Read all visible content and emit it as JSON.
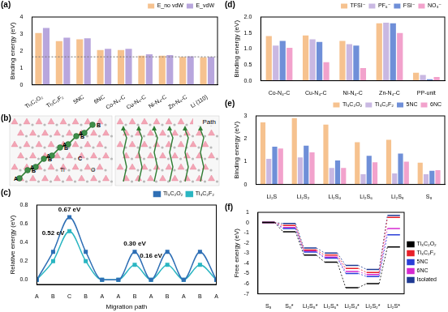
{
  "chart_data": [
    {
      "panel": "(a)",
      "type": "bar",
      "categories": [
        "Ti₃C₂O₂",
        "Ti₃C₂F₂",
        "5NC",
        "6NC",
        "Co-N₄-C",
        "Cu-N₄-C",
        "Ni-N₄-C",
        "Zn-N₄-C",
        "Li (110)"
      ],
      "series": [
        {
          "name": "E_no vdW",
          "color": "#f6c28f",
          "values": [
            3.05,
            2.58,
            2.68,
            2.05,
            2.05,
            1.72,
            1.72,
            1.65,
            1.62
          ]
        },
        {
          "name": "E_vdW",
          "color": "#b8a6dd",
          "values": [
            3.35,
            2.78,
            2.75,
            2.12,
            2.12,
            1.8,
            1.75,
            1.68,
            1.65
          ]
        }
      ],
      "y_label": "Binding energy (eV)",
      "ylim": [
        0,
        4
      ],
      "yticks": [
        0,
        1,
        2,
        3,
        4
      ],
      "reference_line": 1.65,
      "legend": "top",
      "grid": false
    },
    {
      "panel": "(c)",
      "type": "line",
      "categories": [
        "A",
        "B",
        "C",
        "B",
        "A",
        "A",
        "B",
        "A",
        "B",
        "A",
        "B",
        "A"
      ],
      "series": [
        {
          "name": "Ti₃C₂O₂",
          "color": "#2f6fb5",
          "marker": "square",
          "values": [
            0,
            0.3,
            0.67,
            0.3,
            0,
            0,
            0.3,
            0,
            0.3,
            0,
            0.3,
            0
          ]
        },
        {
          "name": "Ti₃C₂F₂",
          "color": "#2bb6c2",
          "marker": "square",
          "values": [
            0,
            0.2,
            0.52,
            0.2,
            0,
            0,
            0.16,
            0,
            0.16,
            0,
            0.16,
            0
          ]
        }
      ],
      "x_label": "Migration path",
      "y_label": "Relative energy (eV)",
      "ylim": [
        -0.05,
        0.8
      ],
      "yticks": [
        {
          "value": 0,
          "label": "0.0"
        },
        0.2,
        0.4,
        0.6,
        0.8
      ],
      "annotations": [
        {
          "text": "0.67 eV",
          "x": 2,
          "y": 0.7,
          "color": "#000000"
        },
        {
          "text": "0.52 eV",
          "x": 1.0,
          "y": 0.45,
          "color": "#000000"
        },
        {
          "text": "0.30 eV",
          "x": 6,
          "y": 0.33,
          "color": "#000000"
        },
        {
          "text": "0.16 eV",
          "x": 7,
          "y": 0.2,
          "color": "#000000"
        }
      ],
      "legend": "top",
      "grid": false
    },
    {
      "panel": "(d)",
      "type": "bar",
      "categories": [
        "Co-N₄-C",
        "Cu-N₄-C",
        "Ni-N₄-C",
        "Zn-N₄-C",
        "PP-unit"
      ],
      "series": [
        {
          "name": "TFSI⁻",
          "color": "#f6c28f",
          "values": [
            1.4,
            1.42,
            1.25,
            1.8,
            0.25
          ]
        },
        {
          "name": "PF₆⁻",
          "color": "#c9b8e2",
          "values": [
            1.1,
            1.3,
            1.15,
            1.82,
            0.18
          ]
        },
        {
          "name": "FSI⁻",
          "color": "#6f8fd8",
          "values": [
            1.25,
            1.22,
            1.1,
            1.8,
            0.05
          ]
        },
        {
          "name": "NO₃⁻",
          "color": "#f2a2cc",
          "values": [
            1.03,
            0.58,
            0.4,
            1.5,
            0.12
          ]
        }
      ],
      "y_label": "Binding energy (eV)",
      "ylim": [
        0,
        2
      ],
      "yticks": [
        {
          "value": 0,
          "label": "0.0"
        },
        0.5,
        {
          "value": 1,
          "label": "1.0"
        },
        1.5,
        {
          "value": 2,
          "label": "2.0"
        }
      ],
      "legend": "top",
      "grid": false
    },
    {
      "panel": "(e)",
      "type": "bar",
      "categories": [
        "Li₂S",
        "Li₂S₂",
        "Li₂S₄",
        "Li₂S₆",
        "Li₂S₈",
        "S₈"
      ],
      "series": [
        {
          "name": "Ti₃C₂O₂",
          "color": "#f6c28f",
          "values": [
            2.72,
            2.9,
            2.62,
            1.85,
            1.95,
            0.95
          ]
        },
        {
          "name": "Ti₃C₂F₂",
          "color": "#c9b8e2",
          "values": [
            1.12,
            1.18,
            0.72,
            0.45,
            0.48,
            0.45
          ]
        },
        {
          "name": "5NC",
          "color": "#6f8fd8",
          "values": [
            1.65,
            1.7,
            1.05,
            1.25,
            1.35,
            0.6
          ]
        },
        {
          "name": "6NC",
          "color": "#f2a2cc",
          "values": [
            1.57,
            1.4,
            0.72,
            0.97,
            1.0,
            0.62
          ]
        }
      ],
      "y_label": "Binding energy (eV)",
      "ylim": [
        0,
        3
      ],
      "yticks": [
        0,
        1,
        2,
        3
      ],
      "legend": "top",
      "grid": false
    },
    {
      "panel": "(f)",
      "type": "step",
      "categories": [
        "S₈",
        "S₈*",
        "Li₂S₈*",
        "Li₂S₆*",
        "Li₂S₄*",
        "Li₂S₂*",
        "Li₂S*"
      ],
      "series": [
        {
          "name": "Ti₃C₂O₂",
          "color": "#000000",
          "values": [
            0,
            -0.9,
            -3.2,
            -3.9,
            -6.4,
            -6.0,
            -2.4
          ]
        },
        {
          "name": "Ti₃C₂F₂",
          "color": "#e8202a",
          "values": [
            0,
            -0.3,
            -2.7,
            -3.2,
            -4.5,
            -4.9,
            0.5
          ]
        },
        {
          "name": "5NC",
          "color": "#2a3fd8",
          "values": [
            0,
            -0.6,
            -2.9,
            -3.5,
            -5.0,
            -5.3,
            -1.2
          ]
        },
        {
          "name": "6NC",
          "color": "#d62ad0",
          "values": [
            0,
            -0.5,
            -2.8,
            -3.4,
            -4.8,
            -5.1,
            -0.6
          ]
        },
        {
          "name": "Isolated",
          "color": "#1f3a93",
          "values": [
            0,
            -0.1,
            -2.5,
            -3.0,
            -4.2,
            -4.6,
            0.7
          ]
        }
      ],
      "y_label": "Free energy (eV)",
      "ylim": [
        -7,
        1
      ],
      "yticks": [
        -7,
        -6,
        -5,
        -4,
        -3,
        -2,
        -1,
        0,
        1
      ],
      "legend": "right",
      "grid": false
    }
  ],
  "panel_b": {
    "panel": "(b)",
    "sites": [
      "A",
      "B",
      "C"
    ],
    "atoms": [
      "Ti",
      "O"
    ],
    "path_label": "Path"
  }
}
